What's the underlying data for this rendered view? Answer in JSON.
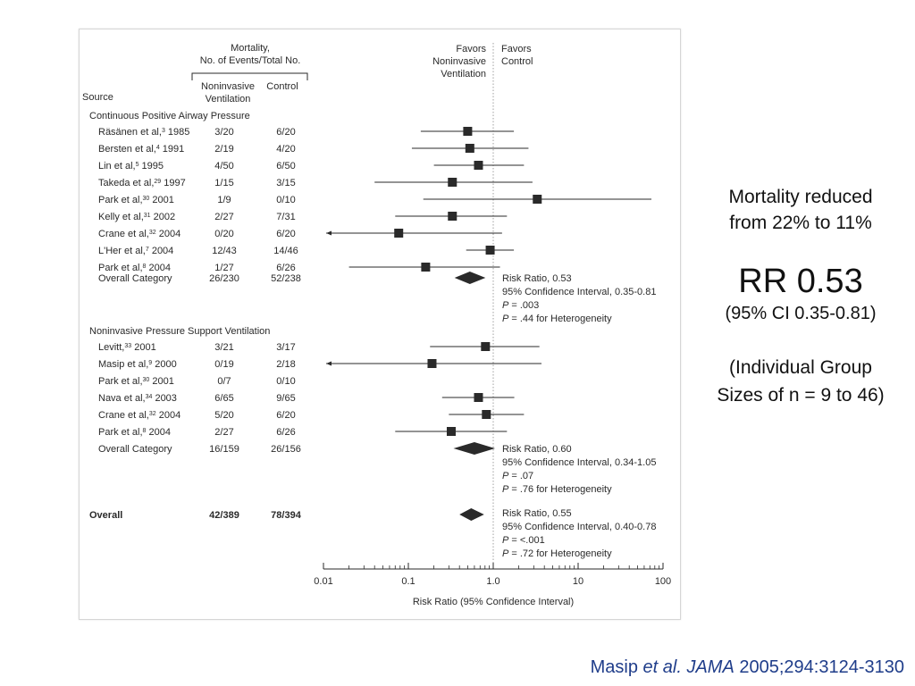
{
  "side": {
    "line1": "Mortality reduced",
    "line2": "from 22% to 11%",
    "rr": "RR 0.53",
    "ci": "(95% CI 0.35-0.81)",
    "note1": "(Individual Group",
    "note2": "Sizes of n = 9 to 46)"
  },
  "citation": {
    "author": "Masip ",
    "etal": "et al.",
    "space": " ",
    "journal": "JAMA",
    "ref": " 2005;294:3124-3130"
  },
  "chart_data": {
    "type": "forest",
    "header": {
      "mortality_line1": "Mortality,",
      "mortality_line2": "No. of Events/Total No.",
      "col_niv_line1": "Noninvasive",
      "col_niv_line2": "Ventilation",
      "col_control": "Control",
      "source": "Source",
      "favors_left": [
        "Favors",
        "Noninvasive",
        "Ventilation"
      ],
      "favors_right": [
        "Favors",
        "Control"
      ]
    },
    "xlabel": "Risk Ratio (95% Confidence Interval)",
    "x_scale": "log",
    "xlim": [
      0.01,
      100
    ],
    "x_ticks": [
      0.01,
      0.1,
      1.0,
      10,
      100
    ],
    "x_tick_labels": [
      "0.01",
      "0.1",
      "1.0",
      "10",
      "100"
    ],
    "reference_line": 1.0,
    "groups": [
      {
        "name": "Continuous Positive Airway Pressure",
        "studies": [
          {
            "name": "Räsänen et al,",
            "ref": "3",
            "year": " 1985",
            "niv": "3/20",
            "ctrl": "6/20",
            "rr": 0.5,
            "lo": 0.14,
            "hi": 1.75
          },
          {
            "name": "Bersten et al,",
            "ref": "4",
            "year": " 1991",
            "niv": "2/19",
            "ctrl": "4/20",
            "rr": 0.53,
            "lo": 0.11,
            "hi": 2.6
          },
          {
            "name": "Lin et al,",
            "ref": "5",
            "year": " 1995",
            "niv": "4/50",
            "ctrl": "6/50",
            "rr": 0.67,
            "lo": 0.2,
            "hi": 2.3
          },
          {
            "name": "Takeda et al,",
            "ref": "29",
            "year": " 1997",
            "niv": "1/15",
            "ctrl": "3/15",
            "rr": 0.33,
            "lo": 0.04,
            "hi": 2.9
          },
          {
            "name": "Park et al,",
            "ref": "30",
            "year": " 2001",
            "niv": "1/9",
            "ctrl": "0/10",
            "rr": 3.3,
            "lo": 0.15,
            "hi": 73
          },
          {
            "name": "Kelly et al,",
            "ref": "31",
            "year": " 2002",
            "niv": "2/27",
            "ctrl": "7/31",
            "rr": 0.33,
            "lo": 0.07,
            "hi": 1.45
          },
          {
            "name": "Crane et al,",
            "ref": "32",
            "year": " 2004",
            "niv": "0/20",
            "ctrl": "6/20",
            "rr": 0.077,
            "lo": 0.005,
            "hi": 1.27,
            "arrow_left": true
          },
          {
            "name": "L'Her et al,",
            "ref": "7",
            "year": " 2004",
            "niv": "12/43",
            "ctrl": "14/46",
            "rr": 0.92,
            "lo": 0.48,
            "hi": 1.75
          },
          {
            "name": "Park et al,",
            "ref": "8",
            "year": " 2004",
            "niv": "1/27",
            "ctrl": "6/26",
            "rr": 0.16,
            "lo": 0.02,
            "hi": 1.2
          }
        ],
        "overall": {
          "label": "Overall Category",
          "niv": "26/230",
          "ctrl": "52/238",
          "rr": 0.53,
          "lo": 0.35,
          "hi": 0.81
        },
        "stats": [
          "Risk Ratio, 0.53",
          "95% Confidence Interval, 0.35-0.81",
          ".003",
          ".44 for Heterogeneity"
        ]
      },
      {
        "name": "Noninvasive Pressure Support Ventilation",
        "studies": [
          {
            "name": "Levitt,",
            "ref": "33",
            "year": " 2001",
            "niv": "3/21",
            "ctrl": "3/17",
            "rr": 0.81,
            "lo": 0.18,
            "hi": 3.5
          },
          {
            "name": "Masip et al,",
            "ref": "9",
            "year": " 2000",
            "niv": "0/19",
            "ctrl": "2/18",
            "rr": 0.19,
            "lo": 0.005,
            "hi": 3.7,
            "arrow_left": true
          },
          {
            "name": "Park et al,",
            "ref": "30",
            "year": " 2001",
            "niv": "0/7",
            "ctrl": "0/10"
          },
          {
            "name": "Nava et al,",
            "ref": "34",
            "year": " 2003",
            "niv": "6/65",
            "ctrl": "9/65",
            "rr": 0.67,
            "lo": 0.25,
            "hi": 1.77
          },
          {
            "name": "Crane et al,",
            "ref": "32",
            "year": " 2004",
            "niv": "5/20",
            "ctrl": "6/20",
            "rr": 0.83,
            "lo": 0.3,
            "hi": 2.3
          },
          {
            "name": "Park et al,",
            "ref": "8",
            "year": " 2004",
            "niv": "2/27",
            "ctrl": "6/26",
            "rr": 0.32,
            "lo": 0.07,
            "hi": 1.45
          }
        ],
        "overall": {
          "label": "Overall Category",
          "niv": "16/159",
          "ctrl": "26/156",
          "rr": 0.6,
          "lo": 0.34,
          "hi": 1.05
        },
        "stats": [
          "Risk Ratio, 0.60",
          "95% Confidence Interval, 0.34-1.05",
          ".07",
          ".76 for Heterogeneity"
        ]
      }
    ],
    "overall": {
      "label": "Overall",
      "niv": "42/389",
      "ctrl": "78/394",
      "rr": 0.55,
      "lo": 0.4,
      "hi": 0.78
    },
    "overall_stats": [
      "Risk Ratio, 0.55",
      "95% Confidence Interval, 0.40-0.78",
      "<.001",
      ".72 for Heterogeneity"
    ]
  }
}
